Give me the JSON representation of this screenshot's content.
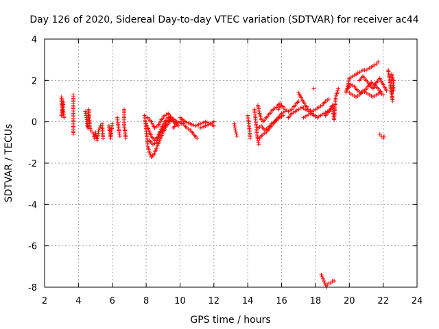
{
  "chart_data": {
    "type": "scatter",
    "title": "Day 126 of 2020, Sidereal Day-to-day VTEC variation (SDTVAR) for receiver ac44",
    "xlabel": "GPS time / hours",
    "ylabel": "SDTVAR / TECUs",
    "xlim": [
      2,
      24
    ],
    "ylim": [
      -8,
      4
    ],
    "xticks": [
      "2",
      "4",
      "6",
      "8",
      "10",
      "12",
      "14",
      "16",
      "18",
      "20",
      "22",
      "24"
    ],
    "yticks": [
      "-8",
      "-6",
      "-4",
      "-2",
      "0",
      "2",
      "4"
    ],
    "grid": true,
    "marker": "+",
    "series": [
      {
        "name": "SDTVAR",
        "color": "#ff0000",
        "segments": [
          [
            [
              3.0,
              1.2
            ],
            [
              3.0,
              0.9
            ],
            [
              3.05,
              0.6
            ],
            [
              3.0,
              0.3
            ],
            [
              3.1,
              1.0
            ],
            [
              3.1,
              0.5
            ],
            [
              3.15,
              0.2
            ]
          ],
          [
            [
              3.7,
              1.3
            ],
            [
              3.7,
              0.8
            ],
            [
              3.7,
              0.4
            ],
            [
              3.7,
              0.0
            ],
            [
              3.7,
              -0.6
            ]
          ],
          [
            [
              4.4,
              0.5
            ],
            [
              4.45,
              0.3
            ],
            [
              4.5,
              0.1
            ],
            [
              4.5,
              -0.1
            ],
            [
              4.55,
              -0.3
            ],
            [
              4.6,
              0.6
            ],
            [
              4.7,
              -0.4
            ],
            [
              4.8,
              -0.5
            ]
          ],
          [
            [
              4.9,
              -0.6
            ],
            [
              4.95,
              -0.8
            ],
            [
              5.0,
              -0.5
            ],
            [
              5.1,
              -0.9
            ],
            [
              5.2,
              -0.4
            ],
            [
              5.3,
              -0.2
            ],
            [
              5.4,
              -0.1
            ],
            [
              5.45,
              -0.8
            ]
          ],
          [
            [
              5.8,
              -0.2
            ],
            [
              5.85,
              -0.5
            ],
            [
              5.9,
              -0.8
            ],
            [
              5.95,
              -0.4
            ],
            [
              6.0,
              -0.1
            ]
          ],
          [
            [
              6.3,
              0.2
            ],
            [
              6.35,
              -0.2
            ],
            [
              6.4,
              -0.5
            ],
            [
              6.45,
              -0.7
            ]
          ],
          [
            [
              6.7,
              0.6
            ],
            [
              6.7,
              0.2
            ],
            [
              6.7,
              -0.2
            ],
            [
              6.75,
              -0.5
            ],
            [
              6.8,
              -0.8
            ]
          ],
          [
            [
              7.9,
              0.3
            ],
            [
              7.95,
              0.0
            ],
            [
              8.0,
              -0.4
            ],
            [
              8.05,
              -0.8
            ],
            [
              8.1,
              -1.2
            ],
            [
              8.2,
              -1.5
            ],
            [
              8.3,
              -1.7
            ],
            [
              8.45,
              -1.6
            ],
            [
              8.6,
              -1.3
            ],
            [
              8.8,
              -0.9
            ],
            [
              9.0,
              -0.5
            ],
            [
              9.2,
              -0.2
            ],
            [
              9.4,
              0.0
            ]
          ],
          [
            [
              8.0,
              -0.1
            ],
            [
              8.15,
              -0.4
            ],
            [
              8.3,
              -0.7
            ],
            [
              8.5,
              -0.9
            ],
            [
              8.7,
              -0.7
            ],
            [
              8.9,
              -0.3
            ],
            [
              9.1,
              0.0
            ],
            [
              9.3,
              0.2
            ],
            [
              9.6,
              0.0
            ],
            [
              9.9,
              -0.2
            ]
          ],
          [
            [
              8.1,
              0.2
            ],
            [
              8.3,
              0.0
            ],
            [
              8.5,
              -0.3
            ],
            [
              8.7,
              -0.2
            ],
            [
              8.9,
              0.1
            ],
            [
              9.1,
              0.3
            ],
            [
              9.3,
              0.4
            ],
            [
              9.5,
              0.2
            ],
            [
              9.8,
              0.0
            ],
            [
              10.1,
              -0.1
            ]
          ],
          [
            [
              8.2,
              -0.9
            ],
            [
              8.4,
              -1.1
            ],
            [
              8.6,
              -1.0
            ],
            [
              8.8,
              -0.6
            ],
            [
              9.0,
              -0.3
            ],
            [
              9.2,
              0.0
            ],
            [
              9.5,
              0.1
            ]
          ],
          [
            [
              9.6,
              -0.3
            ],
            [
              9.8,
              -0.1
            ],
            [
              10.0,
              0.0
            ],
            [
              10.2,
              -0.1
            ],
            [
              10.4,
              -0.3
            ],
            [
              10.6,
              -0.4
            ],
            [
              10.8,
              -0.6
            ],
            [
              11.0,
              -0.8
            ]
          ],
          [
            [
              10.0,
              0.2
            ],
            [
              10.3,
              0.0
            ],
            [
              10.6,
              -0.1
            ],
            [
              10.9,
              -0.2
            ],
            [
              11.2,
              -0.1
            ],
            [
              11.5,
              0.0
            ],
            [
              11.8,
              -0.1
            ],
            [
              12.0,
              -0.2
            ]
          ],
          [
            [
              11.2,
              -0.3
            ],
            [
              11.5,
              -0.2
            ],
            [
              11.8,
              -0.1
            ],
            [
              12.0,
              0.0
            ]
          ],
          [
            [
              13.2,
              -0.1
            ],
            [
              13.25,
              -0.3
            ],
            [
              13.3,
              -0.5
            ],
            [
              13.35,
              -0.7
            ]
          ],
          [
            [
              14.0,
              0.3
            ],
            [
              14.05,
              0.0
            ],
            [
              14.1,
              -0.4
            ],
            [
              14.15,
              -0.8
            ]
          ],
          [
            [
              14.4,
              0.6
            ],
            [
              14.45,
              0.2
            ],
            [
              14.5,
              -0.2
            ],
            [
              14.55,
              -0.6
            ],
            [
              14.6,
              -0.9
            ],
            [
              14.65,
              -1.1
            ]
          ],
          [
            [
              14.6,
              0.8
            ],
            [
              14.7,
              0.4
            ],
            [
              14.8,
              0.1
            ],
            [
              14.9,
              0.0
            ],
            [
              15.1,
              0.2
            ],
            [
              15.3,
              0.4
            ],
            [
              15.5,
              0.6
            ],
            [
              15.7,
              0.7
            ],
            [
              15.9,
              0.9
            ]
          ],
          [
            [
              14.6,
              -0.3
            ],
            [
              14.8,
              -0.2
            ],
            [
              15.0,
              -0.4
            ],
            [
              15.2,
              -0.3
            ],
            [
              15.4,
              -0.1
            ],
            [
              15.6,
              0.0
            ],
            [
              15.8,
              0.2
            ],
            [
              16.0,
              0.4
            ],
            [
              16.2,
              0.5
            ]
          ],
          [
            [
              14.7,
              -0.8
            ],
            [
              14.9,
              -0.6
            ],
            [
              15.1,
              -0.5
            ],
            [
              15.3,
              -0.3
            ],
            [
              15.5,
              -0.1
            ],
            [
              15.7,
              0.1
            ],
            [
              15.9,
              0.2
            ],
            [
              16.1,
              0.3
            ]
          ],
          [
            [
              15.8,
              0.6
            ],
            [
              16.0,
              0.8
            ],
            [
              16.2,
              0.6
            ],
            [
              16.4,
              0.5
            ],
            [
              16.6,
              0.6
            ],
            [
              16.8,
              0.8
            ],
            [
              17.0,
              1.0
            ]
          ],
          [
            [
              16.4,
              0.2
            ],
            [
              16.6,
              0.4
            ],
            [
              16.8,
              0.5
            ],
            [
              17.0,
              0.6
            ],
            [
              17.2,
              0.7
            ],
            [
              17.4,
              0.6
            ],
            [
              17.6,
              0.5
            ],
            [
              17.8,
              0.4
            ],
            [
              18.0,
              0.3
            ]
          ],
          [
            [
              17.0,
              1.4
            ],
            [
              17.2,
              1.1
            ],
            [
              17.4,
              0.8
            ],
            [
              17.6,
              0.6
            ],
            [
              17.8,
              0.5
            ],
            [
              18.0,
              0.6
            ],
            [
              18.2,
              0.7
            ],
            [
              18.4,
              0.8
            ],
            [
              18.6,
              1.0
            ],
            [
              18.8,
              1.1
            ]
          ],
          [
            [
              17.3,
              0.2
            ],
            [
              17.5,
              0.3
            ],
            [
              17.7,
              0.4
            ],
            [
              17.9,
              0.3
            ],
            [
              18.1,
              0.2
            ],
            [
              18.3,
              0.3
            ],
            [
              18.5,
              0.4
            ],
            [
              18.7,
              0.5
            ],
            [
              18.9,
              0.6
            ]
          ],
          [
            [
              17.9,
              1.6
            ]
          ],
          [
            [
              18.6,
              0.3
            ],
            [
              18.8,
              0.5
            ],
            [
              19.0,
              0.8
            ],
            [
              19.1,
              0.1
            ],
            [
              19.2,
              1.2
            ],
            [
              19.35,
              1.6
            ]
          ],
          [
            [
              18.35,
              -7.4
            ],
            [
              18.45,
              -7.6
            ],
            [
              18.55,
              -7.8
            ],
            [
              18.65,
              -8.0
            ],
            [
              18.7,
              -7.9
            ],
            [
              18.8,
              -7.8
            ],
            [
              18.9,
              -7.8
            ],
            [
              19.0,
              -7.7
            ],
            [
              19.1,
              -7.7
            ]
          ],
          [
            [
              19.8,
              1.4
            ],
            [
              19.9,
              1.7
            ],
            [
              20.0,
              2.1
            ],
            [
              20.2,
              2.2
            ],
            [
              20.4,
              2.3
            ],
            [
              20.6,
              2.4
            ],
            [
              20.8,
              2.5
            ],
            [
              21.0,
              2.5
            ],
            [
              21.2,
              2.6
            ],
            [
              21.4,
              2.7
            ],
            [
              21.6,
              2.8
            ],
            [
              21.7,
              2.9
            ]
          ],
          [
            [
              19.9,
              1.6
            ],
            [
              20.1,
              1.8
            ],
            [
              20.3,
              1.7
            ],
            [
              20.5,
              1.5
            ],
            [
              20.7,
              1.4
            ],
            [
              20.9,
              1.5
            ],
            [
              21.1,
              1.7
            ],
            [
              21.3,
              1.9
            ],
            [
              21.5,
              1.8
            ],
            [
              21.7,
              1.6
            ],
            [
              21.9,
              1.4
            ]
          ],
          [
            [
              20.0,
              1.4
            ],
            [
              20.2,
              1.3
            ],
            [
              20.4,
              1.2
            ],
            [
              20.6,
              1.3
            ],
            [
              20.8,
              1.5
            ],
            [
              21.0,
              1.4
            ],
            [
              21.2,
              1.3
            ],
            [
              21.4,
              1.2
            ],
            [
              21.6,
              1.3
            ],
            [
              21.8,
              1.4
            ],
            [
              22.0,
              1.3
            ]
          ],
          [
            [
              20.6,
              2.0
            ],
            [
              20.8,
              2.2
            ],
            [
              21.0,
              2.0
            ],
            [
              21.2,
              1.8
            ],
            [
              21.4,
              1.6
            ],
            [
              21.6,
              1.9
            ],
            [
              21.8,
              2.1
            ],
            [
              22.0,
              1.8
            ],
            [
              22.2,
              1.5
            ]
          ],
          [
            [
              21.8,
              -0.6
            ],
            [
              21.9,
              -0.7
            ],
            [
              22.0,
              -0.8
            ],
            [
              22.05,
              -0.7
            ]
          ],
          [
            [
              22.3,
              2.5
            ],
            [
              22.35,
              2.2
            ],
            [
              22.4,
              1.9
            ],
            [
              22.45,
              1.6
            ],
            [
              22.5,
              1.3
            ],
            [
              22.55,
              1.0
            ],
            [
              22.5,
              2.3
            ],
            [
              22.6,
              2.0
            ],
            [
              22.6,
              1.5
            ]
          ]
        ]
      }
    ]
  }
}
